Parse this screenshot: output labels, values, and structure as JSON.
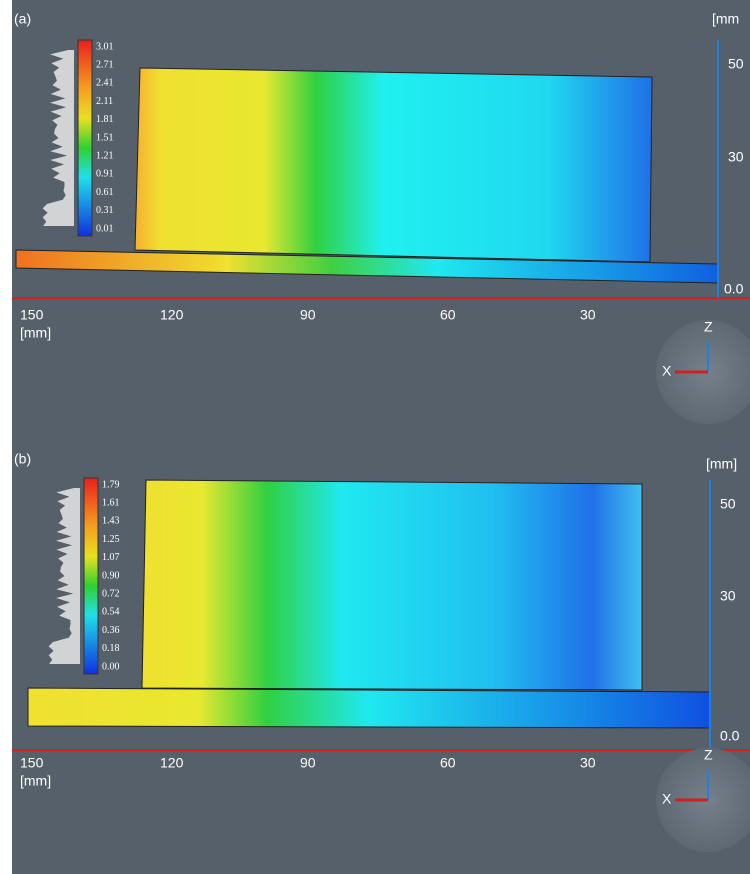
{
  "panels": [
    {
      "label": "(a)",
      "colorbar_ticks": [
        "3.01",
        "2.71",
        "2.41",
        "2.11",
        "1.81",
        "1.51",
        "1.21",
        "0.91",
        "0.61",
        "0.31",
        "0.01"
      ],
      "z_unit": "[mm",
      "z_ticks": [
        "50",
        "30",
        "0.0"
      ],
      "x_ticks": [
        "150",
        "120",
        "90",
        "60",
        "30"
      ],
      "x_unit": "[mm]",
      "gizmo": [
        "Z",
        "X"
      ]
    },
    {
      "label": "(b)",
      "colorbar_ticks": [
        "1.79",
        "1.61",
        "1.43",
        "1.25",
        "1.07",
        "0.90",
        "0.72",
        "0.54",
        "0.36",
        "0.18",
        "0.00"
      ],
      "z_unit": "[mm]",
      "z_ticks": [
        "50",
        "30",
        "0.0"
      ],
      "x_ticks": [
        "150",
        "120",
        "90",
        "60",
        "30"
      ],
      "x_unit": "[mm]",
      "gizmo": [
        "Z",
        "X"
      ]
    }
  ]
}
